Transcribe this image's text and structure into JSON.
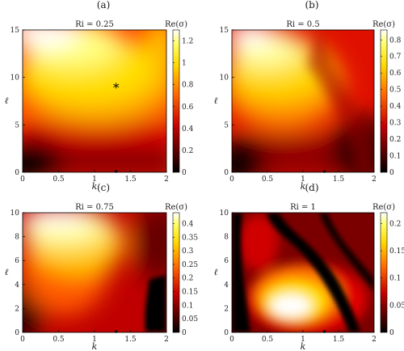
{
  "chart_data": [
    {
      "type": "heatmap",
      "panel_label": "(a)",
      "annotation": "Ri = 0.25",
      "colorbar_label": "Re(σ)",
      "xlabel": "k",
      "ylabel": "ℓ",
      "xlim": [
        0,
        2
      ],
      "ylim": [
        0,
        15
      ],
      "x_ticks": [
        "0",
        "0.5",
        "1",
        "1.5",
        "2"
      ],
      "y_ticks": [
        "0",
        "5",
        "10",
        "15"
      ],
      "colorbar_range": [
        0,
        1.3
      ],
      "colorbar_ticks": [
        "0",
        "0.2",
        "0.4",
        "0.6",
        "0.8",
        "1",
        "1.2"
      ],
      "marker": {
        "symbol": "*",
        "x": 1.3,
        "y": 9
      },
      "axis_dot": {
        "x": 1.3,
        "y": 0
      }
    },
    {
      "type": "heatmap",
      "panel_label": "(b)",
      "annotation": "Ri = 0.5",
      "colorbar_label": "Re(σ)",
      "xlabel": "k",
      "ylabel": "ℓ",
      "xlim": [
        0,
        2
      ],
      "ylim": [
        0,
        15
      ],
      "x_ticks": [
        "0",
        "0.5",
        "1",
        "1.5",
        "2"
      ],
      "y_ticks": [
        "0",
        "5",
        "10",
        "15"
      ],
      "colorbar_range": [
        0,
        0.86
      ],
      "colorbar_ticks": [
        "0",
        "0.1",
        "0.2",
        "0.3",
        "0.4",
        "0.5",
        "0.6",
        "0.7",
        "0.8"
      ],
      "axis_dot": {
        "x": 1.3,
        "y": 0
      }
    },
    {
      "type": "heatmap",
      "panel_label": "(c)",
      "annotation": "Ri = 0.75",
      "colorbar_label": "Re(σ)",
      "xlabel": "k",
      "ylabel": "ℓ",
      "xlim": [
        0,
        2
      ],
      "ylim": [
        0,
        10
      ],
      "x_ticks": [
        "0",
        "0.5",
        "1",
        "1.5",
        "2"
      ],
      "y_ticks": [
        "0",
        "2",
        "4",
        "6",
        "8",
        "10"
      ],
      "colorbar_range": [
        0,
        0.44
      ],
      "colorbar_ticks": [
        "0",
        "0.05",
        "0.1",
        "0.15",
        "0.2",
        "0.25",
        "0.3",
        "0.35",
        "0.4"
      ],
      "axis_dot": {
        "x": 1.3,
        "y": 0
      }
    },
    {
      "type": "heatmap",
      "panel_label": "(d)",
      "annotation": "Ri = 1",
      "colorbar_label": "Re(σ)",
      "xlabel": "k",
      "ylabel": "ℓ",
      "xlim": [
        0,
        2
      ],
      "ylim": [
        0,
        10
      ],
      "x_ticks": [
        "0",
        "0.5",
        "1",
        "1.5",
        "2"
      ],
      "y_ticks": [
        "0",
        "2",
        "4",
        "6",
        "8",
        "10"
      ],
      "colorbar_range": [
        0,
        0.22
      ],
      "colorbar_ticks": [
        "0",
        "0.05",
        "0.1",
        "0.15",
        "0.2"
      ],
      "axis_dot": {
        "x": 1.3,
        "y": 0
      }
    }
  ]
}
